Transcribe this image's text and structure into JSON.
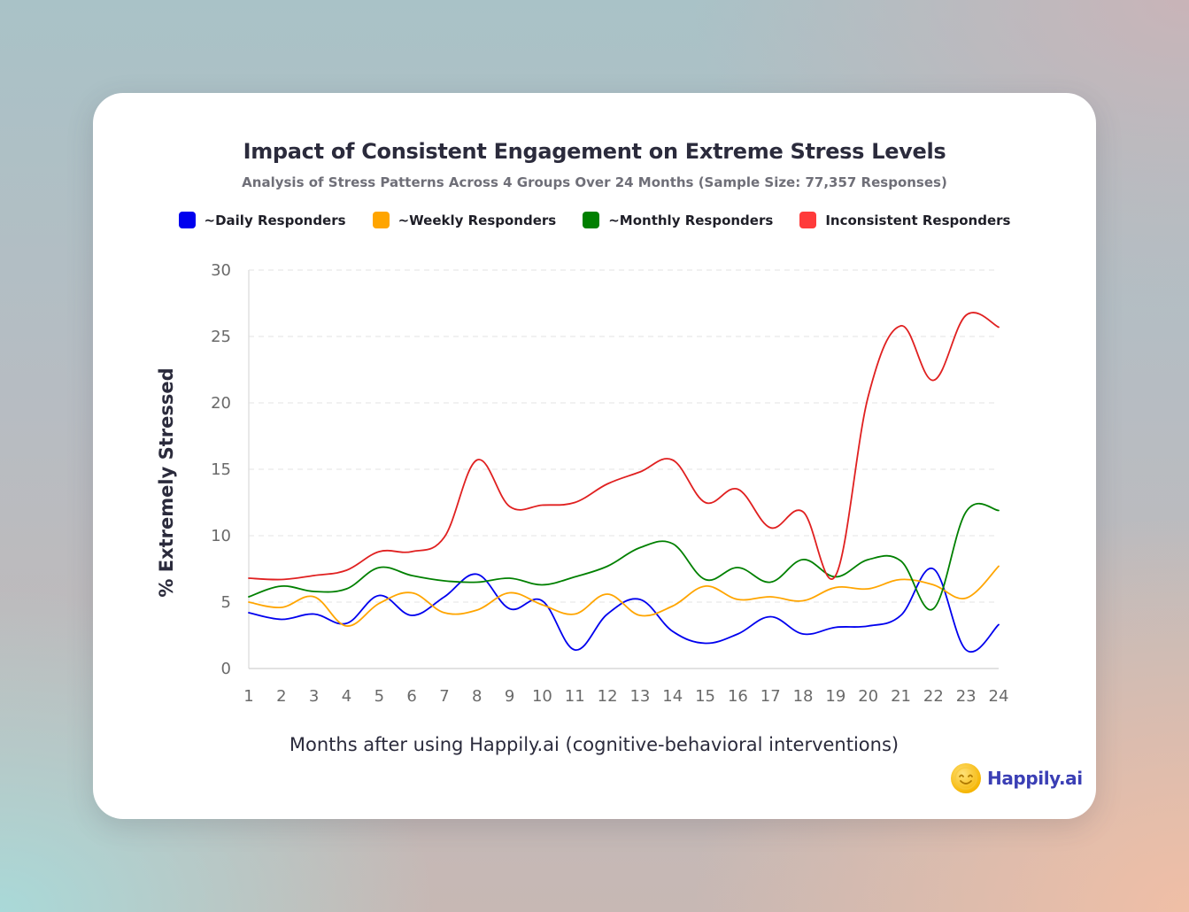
{
  "chart_data": {
    "type": "line",
    "title": "Impact of Consistent Engagement on Extreme Stress Levels",
    "subtitle": "Analysis of Stress Patterns Across 4 Groups Over 24 Months (Sample Size: 77,357 Responses)",
    "xlabel": "Months after using Happily.ai (cognitive-behavioral interventions)",
    "ylabel": "% Extremely Stressed",
    "ylim": [
      0,
      30
    ],
    "yticks": [
      0,
      5,
      10,
      15,
      20,
      25,
      30
    ],
    "grid": true,
    "legend_position": "top",
    "x": [
      "1",
      "2",
      "3",
      "4",
      "5",
      "6",
      "7",
      "8",
      "9",
      "10",
      "11",
      "12",
      "13",
      "14",
      "15",
      "16",
      "17",
      "18",
      "19",
      "20",
      "21",
      "22",
      "23",
      "24"
    ],
    "series": [
      {
        "name": "~Daily Responders",
        "color": "#0000ee",
        "values": [
          4.2,
          3.7,
          4.1,
          3.4,
          5.5,
          4.0,
          5.4,
          7.1,
          4.5,
          5.1,
          1.4,
          4.1,
          5.2,
          2.8,
          1.9,
          2.6,
          3.9,
          2.6,
          3.1,
          3.2,
          4.0,
          7.5,
          1.4,
          3.3
        ]
      },
      {
        "name": "~Weekly Responders",
        "color": "#ffa500",
        "values": [
          5.0,
          4.6,
          5.4,
          3.2,
          4.9,
          5.7,
          4.2,
          4.4,
          5.7,
          4.8,
          4.1,
          5.6,
          4.0,
          4.7,
          6.2,
          5.2,
          5.4,
          5.1,
          6.1,
          6.0,
          6.7,
          6.3,
          5.3,
          7.7
        ]
      },
      {
        "name": "~Monthly Responders",
        "color": "#008000",
        "values": [
          5.4,
          6.2,
          5.8,
          6.0,
          7.6,
          7.0,
          6.6,
          6.5,
          6.8,
          6.3,
          6.9,
          7.7,
          9.1,
          9.4,
          6.7,
          7.6,
          6.5,
          8.2,
          6.9,
          8.2,
          8.1,
          4.5,
          11.8,
          11.9
        ]
      },
      {
        "name": "Inconsistent Responders",
        "color": "#ff3b3b",
        "line_color": "#e02020",
        "values": [
          6.8,
          6.7,
          7.0,
          7.4,
          8.8,
          8.8,
          9.9,
          15.7,
          12.2,
          12.3,
          12.5,
          13.9,
          14.8,
          15.7,
          12.5,
          13.5,
          10.6,
          11.8,
          7.0,
          20.5,
          25.8,
          21.7,
          26.6,
          25.7
        ]
      }
    ]
  },
  "brand": {
    "name": "Happily.ai",
    "logo_icon": "smiley-sun-logo"
  }
}
